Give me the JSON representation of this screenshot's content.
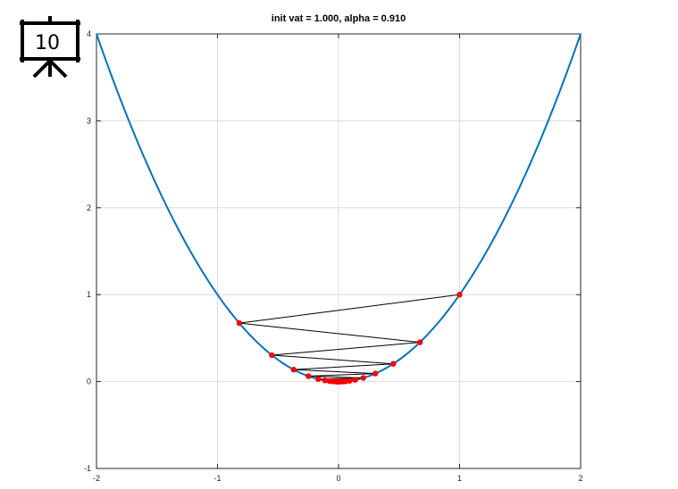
{
  "badge": {
    "label": "10",
    "icon": "presentation-board-icon"
  },
  "chart_data": {
    "type": "line",
    "title": "init vat = 1.000, alpha = 0.910",
    "xlabel": "",
    "ylabel": "",
    "xlim": [
      -2,
      2
    ],
    "ylim": [
      -1,
      4
    ],
    "x_ticks": [
      -2,
      -1,
      0,
      1,
      2
    ],
    "y_ticks": [
      -1,
      0,
      1,
      2,
      3,
      4
    ],
    "grid": true,
    "curve": {
      "function": "y = x^2",
      "x_range": [
        -2,
        2
      ],
      "color": "#0072BD"
    },
    "iterates": {
      "color": "#FF0000",
      "path_color": "#000000",
      "x": [
        1.0,
        -0.82,
        0.672,
        -0.551,
        0.452,
        -0.371,
        0.304,
        -0.249,
        0.204,
        -0.168,
        0.137,
        -0.113,
        0.092,
        -0.076,
        0.062,
        -0.051,
        0.042,
        -0.034,
        0.028,
        -0.023,
        0.019,
        -0.016,
        0.013,
        -0.011,
        0.009,
        -0.007,
        0.006,
        -0.005
      ]
    }
  }
}
